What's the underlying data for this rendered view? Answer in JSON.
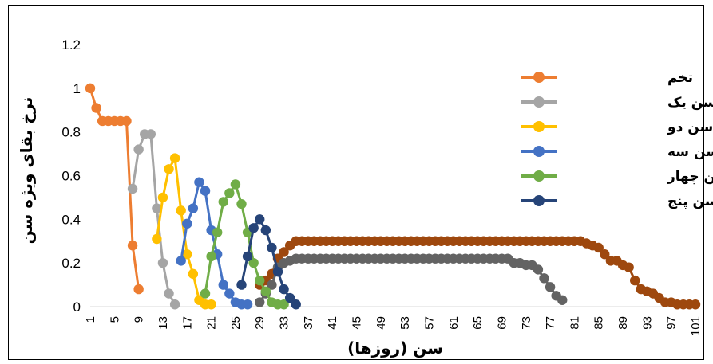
{
  "chart_data": {
    "type": "line",
    "xlabel": "سن (روزها)",
    "ylabel": "نرخ بقای ویژه سن",
    "xlim": [
      1,
      101
    ],
    "ylim": [
      0,
      1.2
    ],
    "y_ticks": [
      "0",
      "0.2",
      "0.4",
      "0.6",
      "0.8",
      "1",
      "1.2"
    ],
    "x_ticks": [
      "1",
      "5",
      "9",
      "13",
      "17",
      "21",
      "25",
      "29",
      "33",
      "37",
      "41",
      "45",
      "49",
      "53",
      "57",
      "61",
      "65",
      "69",
      "73",
      "77",
      "81",
      "85",
      "89",
      "93",
      "97",
      "101"
    ],
    "grid": false,
    "legend_position": "top-right",
    "series": [
      {
        "name": "تخم",
        "color": "#ED7D31",
        "x": [
          1,
          2,
          3,
          4,
          5,
          6,
          7,
          8,
          9
        ],
        "y": [
          1.0,
          0.91,
          0.85,
          0.85,
          0.85,
          0.85,
          0.85,
          0.28,
          0.08
        ]
      },
      {
        "name": "پوره سن یک",
        "color": "#A5A5A5",
        "x": [
          8,
          9,
          10,
          11,
          12,
          13,
          14,
          15
        ],
        "y": [
          0.54,
          0.72,
          0.79,
          0.79,
          0.45,
          0.2,
          0.06,
          0.01
        ]
      },
      {
        "name": "پوره سن دو",
        "color": "#FFC000",
        "x": [
          12,
          13,
          14,
          15,
          16,
          17,
          18,
          19,
          20,
          21
        ],
        "y": [
          0.31,
          0.5,
          0.63,
          0.68,
          0.44,
          0.24,
          0.15,
          0.03,
          0.01,
          0.01
        ]
      },
      {
        "name": "پوره سن سه",
        "color": "#4472C4",
        "x": [
          16,
          17,
          18,
          19,
          20,
          21,
          22,
          23,
          24,
          25,
          26,
          27
        ],
        "y": [
          0.21,
          0.38,
          0.45,
          0.57,
          0.53,
          0.35,
          0.24,
          0.1,
          0.06,
          0.02,
          0.01,
          0.01
        ]
      },
      {
        "name": "پوره سن چهار",
        "color": "#70AD47",
        "x": [
          20,
          21,
          22,
          23,
          24,
          25,
          26,
          27,
          28,
          29,
          30,
          31,
          32,
          33
        ],
        "y": [
          0.06,
          0.23,
          0.34,
          0.48,
          0.52,
          0.56,
          0.47,
          0.34,
          0.2,
          0.12,
          0.07,
          0.02,
          0.01,
          0.01
        ]
      },
      {
        "name": "پوره سن پنج",
        "color": "#264478",
        "x": [
          26,
          27,
          28,
          29,
          30,
          31,
          32,
          33,
          34,
          35
        ],
        "y": [
          0.1,
          0.23,
          0.36,
          0.4,
          0.35,
          0.27,
          0.16,
          0.08,
          0.04,
          0.01
        ]
      },
      {
        "name": "",
        "color": "#9E480E",
        "x": [
          29,
          30,
          31,
          32,
          33,
          34,
          35,
          36,
          37,
          38,
          39,
          40,
          41,
          42,
          43,
          44,
          45,
          46,
          47,
          48,
          49,
          50,
          51,
          52,
          53,
          54,
          55,
          56,
          57,
          58,
          59,
          60,
          61,
          62,
          63,
          64,
          65,
          66,
          67,
          68,
          69,
          70,
          71,
          72,
          73,
          74,
          75,
          76,
          77,
          78,
          79,
          80,
          81,
          82,
          83,
          84,
          85,
          86,
          87,
          88,
          89,
          90,
          91,
          92,
          93,
          94,
          95,
          96,
          97,
          98,
          99,
          100,
          101
        ],
        "y": [
          0.1,
          0.12,
          0.15,
          0.22,
          0.25,
          0.28,
          0.3,
          0.3,
          0.3,
          0.3,
          0.3,
          0.3,
          0.3,
          0.3,
          0.3,
          0.3,
          0.3,
          0.3,
          0.3,
          0.3,
          0.3,
          0.3,
          0.3,
          0.3,
          0.3,
          0.3,
          0.3,
          0.3,
          0.3,
          0.3,
          0.3,
          0.3,
          0.3,
          0.3,
          0.3,
          0.3,
          0.3,
          0.3,
          0.3,
          0.3,
          0.3,
          0.3,
          0.3,
          0.3,
          0.3,
          0.3,
          0.3,
          0.3,
          0.3,
          0.3,
          0.3,
          0.3,
          0.3,
          0.3,
          0.29,
          0.28,
          0.27,
          0.24,
          0.21,
          0.21,
          0.19,
          0.18,
          0.12,
          0.08,
          0.07,
          0.06,
          0.04,
          0.02,
          0.02,
          0.01,
          0.01,
          0.01,
          0.01
        ]
      },
      {
        "name": "",
        "color": "#636363",
        "x": [
          29,
          30,
          31,
          32,
          33,
          34,
          35,
          36,
          37,
          38,
          39,
          40,
          41,
          42,
          43,
          44,
          45,
          46,
          47,
          48,
          49,
          50,
          51,
          52,
          53,
          54,
          55,
          56,
          57,
          58,
          59,
          60,
          61,
          62,
          63,
          64,
          65,
          66,
          67,
          68,
          69,
          70,
          71,
          72,
          73,
          74,
          75,
          76,
          77,
          78,
          79
        ],
        "y": [
          0.02,
          0.06,
          0.1,
          0.18,
          0.2,
          0.21,
          0.22,
          0.22,
          0.22,
          0.22,
          0.22,
          0.22,
          0.22,
          0.22,
          0.22,
          0.22,
          0.22,
          0.22,
          0.22,
          0.22,
          0.22,
          0.22,
          0.22,
          0.22,
          0.22,
          0.22,
          0.22,
          0.22,
          0.22,
          0.22,
          0.22,
          0.22,
          0.22,
          0.22,
          0.22,
          0.22,
          0.22,
          0.22,
          0.22,
          0.22,
          0.22,
          0.22,
          0.2,
          0.2,
          0.19,
          0.19,
          0.17,
          0.13,
          0.09,
          0.05,
          0.03
        ]
      }
    ]
  }
}
